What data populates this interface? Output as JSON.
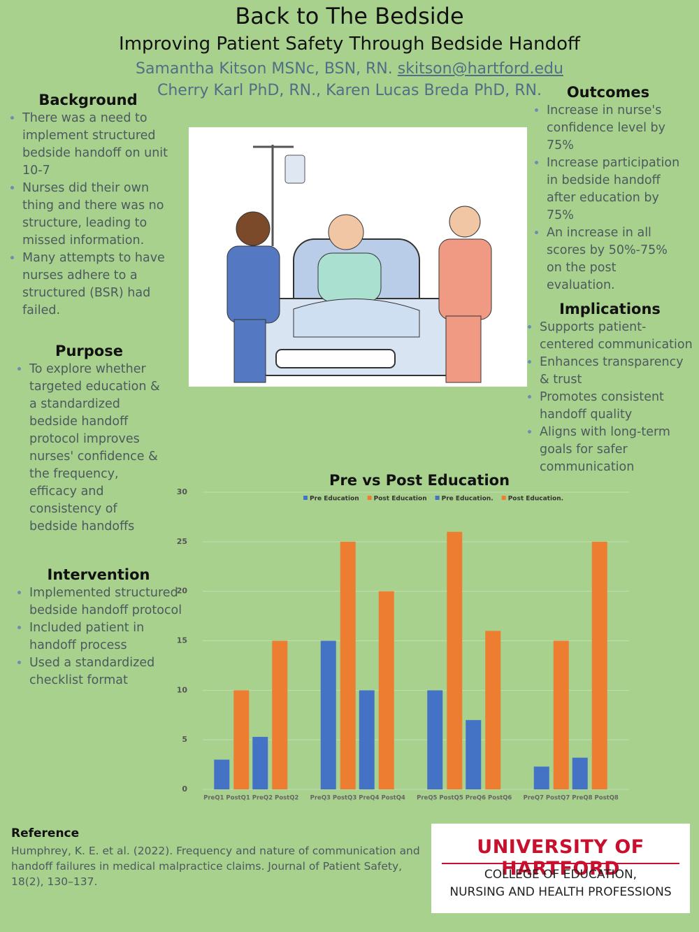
{
  "header": {
    "title": "Back to The Bedside",
    "subtitle": "Improving Patient Safety Through Bedside Handoff",
    "authors_line1": "Samantha Kitson MSNc, BSN, RN.",
    "email": "skitson@hartford.edu",
    "authors_line2": "Cherry Karl PhD, RN., Karen Lucas Breda PhD, RN."
  },
  "background": {
    "heading": "Background",
    "bullets": [
      "There was a need to implement  structured bedside handoff on unit 10-7",
      "Nurses did their own thing and there was no structure, leading to missed information.",
      "Many attempts to have nurses adhere to a structured (BSR) had failed."
    ]
  },
  "purpose": {
    "heading": "Purpose",
    "bullets": [
      "To explore whether targeted education & a standardized bedside handoff protocol improves nurses' confidence & the frequency, efficacy and consistency of bedside handoffs"
    ]
  },
  "intervention": {
    "heading": "Intervention",
    "bullets": [
      "Implemented structured bedside handoff protocol",
      "Included patient in handoff process",
      "Used a standardized checklist format"
    ]
  },
  "outcomes": {
    "heading": "Outcomes",
    "bullets": [
      "Increase in nurse's confidence level by 75%",
      "Increase participation in bedside handoff after education by 75%",
      "An increase in all scores by  50%-75% on the post evaluation."
    ]
  },
  "implications": {
    "heading": "Implications",
    "bullets": [
      "Supports patient-centered communication",
      "Enhances transparency & trust",
      "Promotes consistent handoff quality",
      "Aligns with long-term goals for safer communication"
    ]
  },
  "chart_data": {
    "type": "bar",
    "title": "Pre vs Post Education",
    "categories": [
      "PreQ1 PostQ1 PreQ2 PostQ2",
      "PreQ3 PostQ3 PreQ4 PostQ4",
      "PreQ5 PostQ5 PreQ6 PostQ6",
      "PreQ7 PostQ7 PreQ8 PostQ8"
    ],
    "series": [
      {
        "name": "Pre Education",
        "color": "#4472c4",
        "values": [
          3,
          15,
          10,
          2.3
        ]
      },
      {
        "name": "Post Education",
        "color": "#ed7d31",
        "values": [
          10,
          25,
          26,
          15
        ]
      },
      {
        "name": "Pre Education.",
        "color": "#4472c4",
        "values": [
          5.3,
          10,
          7,
          3.2
        ]
      },
      {
        "name": "Post Education.",
        "color": "#ed7d31",
        "values": [
          15,
          20,
          16,
          25
        ]
      }
    ],
    "ylim": [
      0,
      30
    ],
    "yticks": [
      0,
      5,
      10,
      15,
      20,
      25,
      30
    ],
    "grid": true
  },
  "reference": {
    "heading": "Reference",
    "text": "Humphrey, K. E. et al. (2022). Frequency and nature of communication and handoff failures in medical malpractice claims. Journal of Patient Safety, 18(2), 130–137."
  },
  "logo": {
    "name": "UNIVERSITY OF HARTFORD",
    "line1": "COLLEGE OF EDUCATION,",
    "line2": "NURSING AND HEALTH PROFESSIONS"
  }
}
